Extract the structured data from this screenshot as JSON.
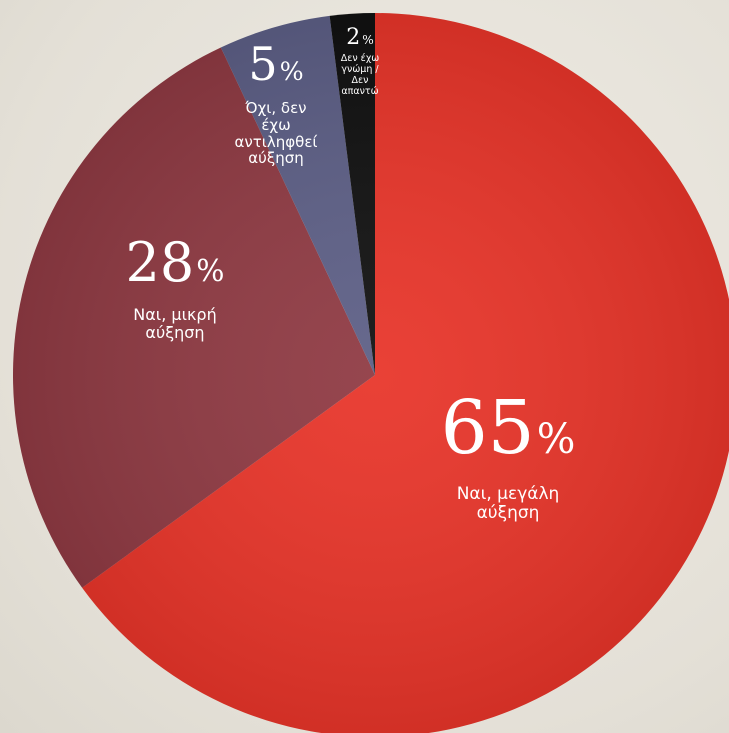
{
  "chart_data": {
    "type": "pie",
    "title": "",
    "start": "12 o'clock, clockwise",
    "slices": [
      {
        "value": 65,
        "value_label": "65",
        "label": "Ναι, μεγάλη αύξηση",
        "color": "#e8352a"
      },
      {
        "value": 28,
        "value_label": "28",
        "label": "Ναι, μικρή αύξηση",
        "color": "#8f3a43"
      },
      {
        "value": 5,
        "value_label": "5",
        "label": "Όχι, δεν έχω αντιληφθεί αύξηση",
        "color": "#5d5f86"
      },
      {
        "value": 2,
        "value_label": "2",
        "label": "Δεν έχω γνώμη / Δεν απαντώ",
        "color": "#111111"
      }
    ],
    "unit": "%"
  }
}
